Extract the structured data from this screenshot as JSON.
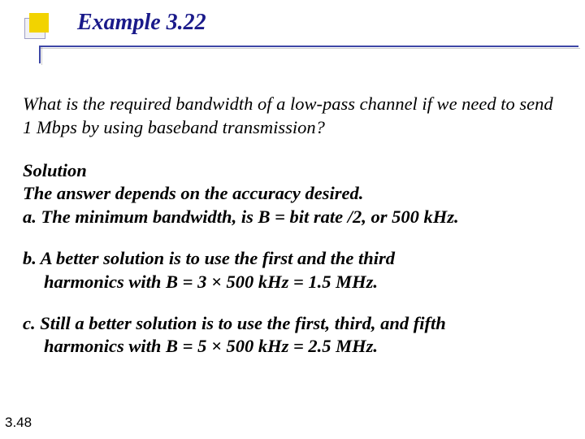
{
  "header": {
    "title": "Example 3.22",
    "accent_color": "#3d47a6",
    "bullet_fill": "#f2d300"
  },
  "question": "What is the required bandwidth of a low-pass channel if we need to send 1 Mbps by using baseband transmission?",
  "solution": {
    "heading": "Solution",
    "intro": "The answer depends on the accuracy desired.",
    "items": {
      "a": "a. The minimum bandwidth, is B = bit rate /2, or 500 kHz.",
      "b_line1": "b. A better solution is to use the first and the third",
      "b_line2": "harmonics with  B = 3 × 500 kHz = 1.5 MHz.",
      "c_line1": "c. Still a better solution is to use the first, third, and fifth",
      "c_line2": "harmonics with B = 5 × 500 kHz = 2.5 MHz."
    }
  },
  "page_number": "3.48"
}
